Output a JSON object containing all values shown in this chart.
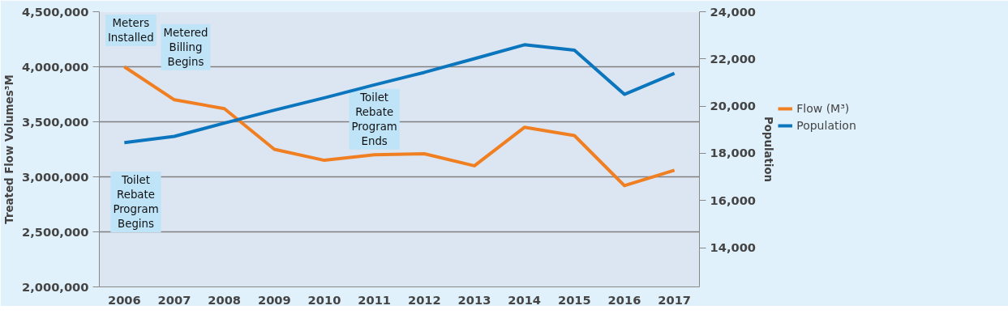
{
  "chart_data": {
    "type": "line",
    "xlabel": null,
    "ylabel": "Treated Flow Volumes³M",
    "y2label": "Population",
    "categories": [
      "2006",
      "2007",
      "2008",
      "2009",
      "2010",
      "2011",
      "2012",
      "2013",
      "2014",
      "2015",
      "2016",
      "2017"
    ],
    "series": [
      {
        "name": "Flow (M³)",
        "color": "#f07f22",
        "values": [
          4000000,
          3700000,
          3620000,
          3250000,
          3150000,
          3200000,
          3210000,
          3100000,
          3450000,
          3375000,
          2920000,
          3060000
        ]
      },
      {
        "name": "Population",
        "color": "#0b75bd",
        "axis": "y2",
        "values": [
          18450,
          18720,
          19280,
          19830,
          20350,
          20900,
          21430,
          22010,
          22600,
          22370,
          20500,
          21390
        ]
      }
    ],
    "ylim": [
      2000000,
      4500000
    ],
    "yticks": [
      {
        "value": 2000000,
        "label": "2,000,000"
      },
      {
        "value": 2500000,
        "label": "2,500,000"
      },
      {
        "value": 3000000,
        "label": "3,000,000"
      },
      {
        "value": 3500000,
        "label": "3,500,000"
      },
      {
        "value": 4000000,
        "label": "4,000,000"
      },
      {
        "value": 4500000,
        "label": "4,500,000"
      }
    ],
    "y2lim": [
      12340,
      24000
    ],
    "y2ticks": [
      {
        "value": 14000,
        "label": "14,000"
      },
      {
        "value": 16000,
        "label": "16,000"
      },
      {
        "value": 18000,
        "label": "18,000"
      },
      {
        "value": 20000,
        "label": "20,000"
      },
      {
        "value": 22000,
        "label": "22,000"
      },
      {
        "value": 24000,
        "label": "24,000"
      }
    ],
    "annotations": [
      {
        "text": "Meters\nInstalled",
        "x": "2006",
        "y": 4000000
      },
      {
        "text": "Metered\nBilling\nBegins",
        "x": "2007",
        "y": 3700000
      },
      "Toilet\nRebate\nProgram\nBegins",
      {
        "text": "Toilet\nRebate\nProgram\nEnds",
        "x": "2011",
        "y": 3200000
      }
    ],
    "grid": "y",
    "legend": "right",
    "marker": "none",
    "line_style": "solid"
  }
}
